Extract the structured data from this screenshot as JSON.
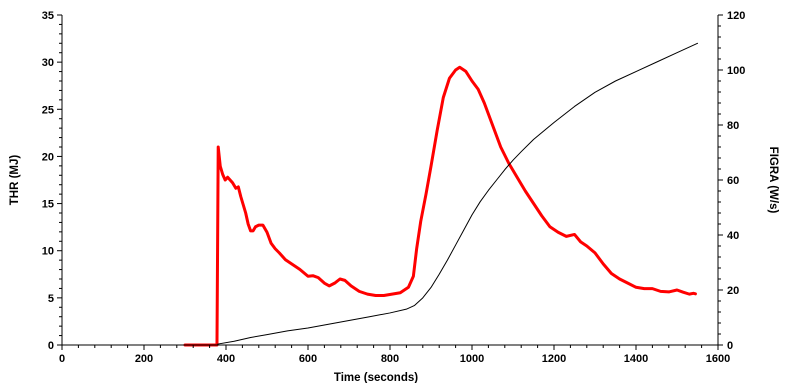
{
  "chart_data": {
    "type": "line",
    "title": "",
    "xlabel": "Time (seconds)",
    "ylabel_left": "THR (MJ)",
    "ylabel_right": "FIGRA (W/s)",
    "xlim": [
      0,
      1600
    ],
    "ylim_left": [
      0,
      35
    ],
    "ylim_right": [
      0,
      120
    ],
    "x_ticks": [
      "0",
      "200",
      "400",
      "600",
      "800",
      "1000",
      "1200",
      "1400",
      "1600"
    ],
    "y_left_ticks": [
      "0",
      "5",
      "10",
      "15",
      "20",
      "25",
      "30",
      "35"
    ],
    "y_right_ticks": [
      "0",
      "20",
      "40",
      "60",
      "80",
      "100",
      "120"
    ],
    "grid": false,
    "legend": "none",
    "series": [
      {
        "axis": "right",
        "color": "#ff0000",
        "style": "thick",
        "points": [
          [
            300,
            0
          ],
          [
            375,
            0
          ],
          [
            378,
            0
          ],
          [
            381,
            72
          ],
          [
            386,
            65
          ],
          [
            392,
            62
          ],
          [
            398,
            60
          ],
          [
            404,
            61
          ],
          [
            410,
            60
          ],
          [
            416,
            59
          ],
          [
            424,
            57
          ],
          [
            430,
            57.5
          ],
          [
            436,
            54
          ],
          [
            442,
            51
          ],
          [
            448,
            48
          ],
          [
            454,
            44
          ],
          [
            460,
            41.5
          ],
          [
            466,
            41.5
          ],
          [
            472,
            43
          ],
          [
            480,
            43.6
          ],
          [
            490,
            43.6
          ],
          [
            500,
            41
          ],
          [
            510,
            37
          ],
          [
            520,
            35
          ],
          [
            530,
            33.5
          ],
          [
            545,
            31
          ],
          [
            560,
            29.5
          ],
          [
            580,
            27.5
          ],
          [
            600,
            25
          ],
          [
            612,
            25.2
          ],
          [
            625,
            24.5
          ],
          [
            640,
            22.5
          ],
          [
            652,
            21.5
          ],
          [
            665,
            22.5
          ],
          [
            678,
            24
          ],
          [
            690,
            23.5
          ],
          [
            705,
            21.5
          ],
          [
            725,
            19.5
          ],
          [
            745,
            18.5
          ],
          [
            765,
            18
          ],
          [
            785,
            18
          ],
          [
            805,
            18.5
          ],
          [
            825,
            19
          ],
          [
            845,
            21
          ],
          [
            857,
            25
          ],
          [
            865,
            35
          ],
          [
            875,
            45
          ],
          [
            888,
            55
          ],
          [
            900,
            65
          ],
          [
            915,
            78
          ],
          [
            930,
            90
          ],
          [
            945,
            97
          ],
          [
            960,
            100
          ],
          [
            970,
            101
          ],
          [
            985,
            99.5
          ],
          [
            1000,
            96
          ],
          [
            1015,
            93
          ],
          [
            1030,
            88
          ],
          [
            1050,
            80
          ],
          [
            1070,
            72
          ],
          [
            1090,
            66
          ],
          [
            1110,
            61
          ],
          [
            1130,
            56
          ],
          [
            1150,
            51.5
          ],
          [
            1170,
            47
          ],
          [
            1190,
            43
          ],
          [
            1210,
            41
          ],
          [
            1230,
            39.5
          ],
          [
            1250,
            40.2
          ],
          [
            1265,
            37.5
          ],
          [
            1280,
            36
          ],
          [
            1300,
            33.5
          ],
          [
            1320,
            29.5
          ],
          [
            1340,
            26
          ],
          [
            1360,
            24
          ],
          [
            1380,
            22.5
          ],
          [
            1400,
            21
          ],
          [
            1420,
            20.5
          ],
          [
            1440,
            20.5
          ],
          [
            1460,
            19.5
          ],
          [
            1480,
            19.3
          ],
          [
            1500,
            20
          ],
          [
            1515,
            19.2
          ],
          [
            1530,
            18.5
          ],
          [
            1540,
            18.8
          ],
          [
            1545,
            18.6
          ]
        ]
      },
      {
        "axis": "left",
        "color": "#000000",
        "style": "thin",
        "points": [
          [
            380,
            0.1
          ],
          [
            420,
            0.4
          ],
          [
            460,
            0.8
          ],
          [
            500,
            1.1
          ],
          [
            550,
            1.5
          ],
          [
            600,
            1.8
          ],
          [
            650,
            2.2
          ],
          [
            700,
            2.6
          ],
          [
            750,
            3.0
          ],
          [
            800,
            3.4
          ],
          [
            840,
            3.8
          ],
          [
            860,
            4.2
          ],
          [
            880,
            5.0
          ],
          [
            900,
            6.1
          ],
          [
            920,
            7.5
          ],
          [
            940,
            9.0
          ],
          [
            960,
            10.6
          ],
          [
            980,
            12.2
          ],
          [
            1000,
            13.8
          ],
          [
            1020,
            15.2
          ],
          [
            1040,
            16.4
          ],
          [
            1060,
            17.5
          ],
          [
            1080,
            18.6
          ],
          [
            1100,
            19.6
          ],
          [
            1120,
            20.5
          ],
          [
            1150,
            21.8
          ],
          [
            1200,
            23.6
          ],
          [
            1250,
            25.3
          ],
          [
            1300,
            26.8
          ],
          [
            1350,
            28.0
          ],
          [
            1400,
            29.0
          ],
          [
            1450,
            30.0
          ],
          [
            1500,
            31.0
          ],
          [
            1550,
            32.0
          ]
        ]
      }
    ]
  }
}
